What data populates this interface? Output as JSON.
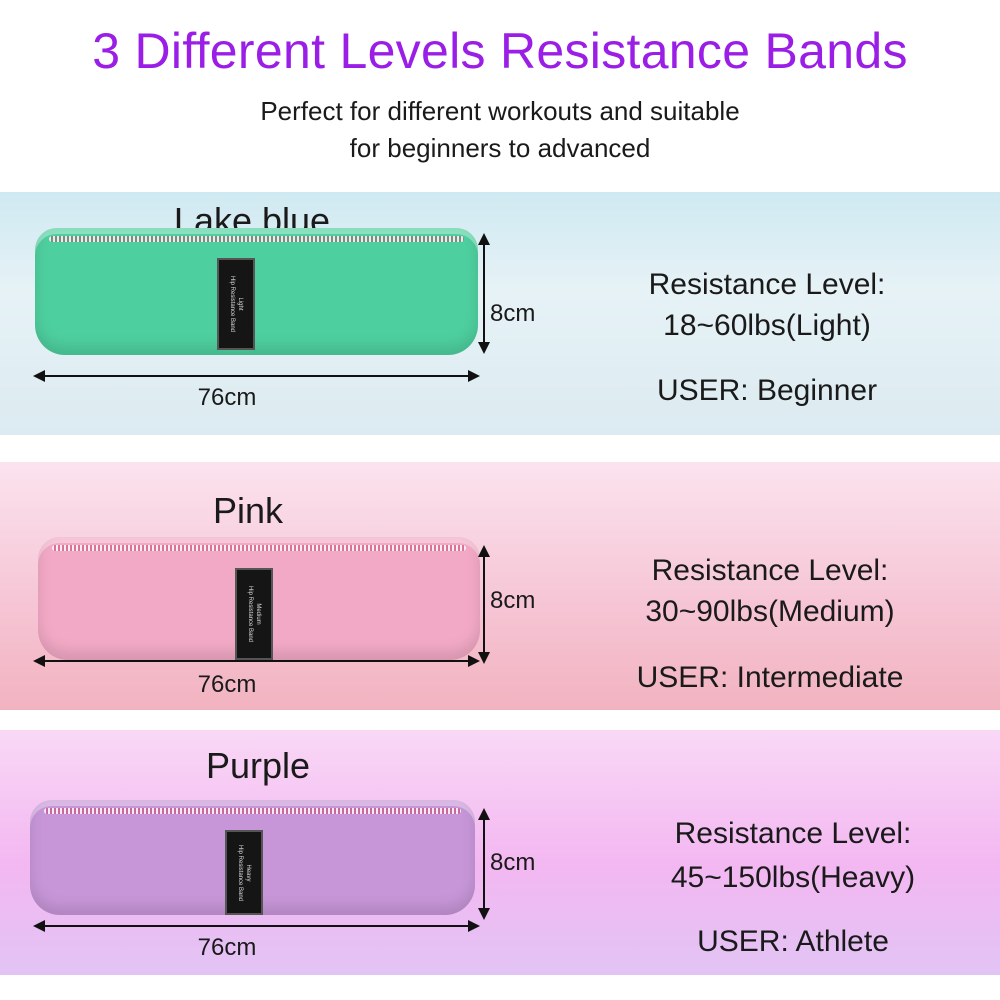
{
  "header": {
    "title": "3 Different Levels Resistance Bands",
    "subtitle_line1": "Perfect for different workouts and suitable",
    "subtitle_line2": "for beginners to advanced"
  },
  "bands": [
    {
      "name": "Lake blue",
      "color": "#4ecf9f",
      "tag_level": "Light",
      "tag_label": "Hip Resistance Band",
      "height": "8cm",
      "length": "76cm",
      "resistance_label": "Resistance Level:",
      "resistance": "18~60lbs(Light)",
      "user": "USER: Beginner"
    },
    {
      "name": "Pink",
      "color": "#f2a9c5",
      "tag_level": "Medium",
      "tag_label": "Hip Resistance Band",
      "height": "8cm",
      "length": "76cm",
      "resistance_label": "Resistance Level:",
      "resistance": "30~90lbs(Medium)",
      "user": "USER: Intermediate"
    },
    {
      "name": "Purple",
      "color": "#c796d8",
      "tag_level": "Heavy",
      "tag_label": "Hip Resistance Band",
      "height": "8cm",
      "length": "76cm",
      "resistance_label": "Resistance Level:",
      "resistance": "45~150lbs(Heavy)",
      "user": "USER: Athlete"
    }
  ]
}
